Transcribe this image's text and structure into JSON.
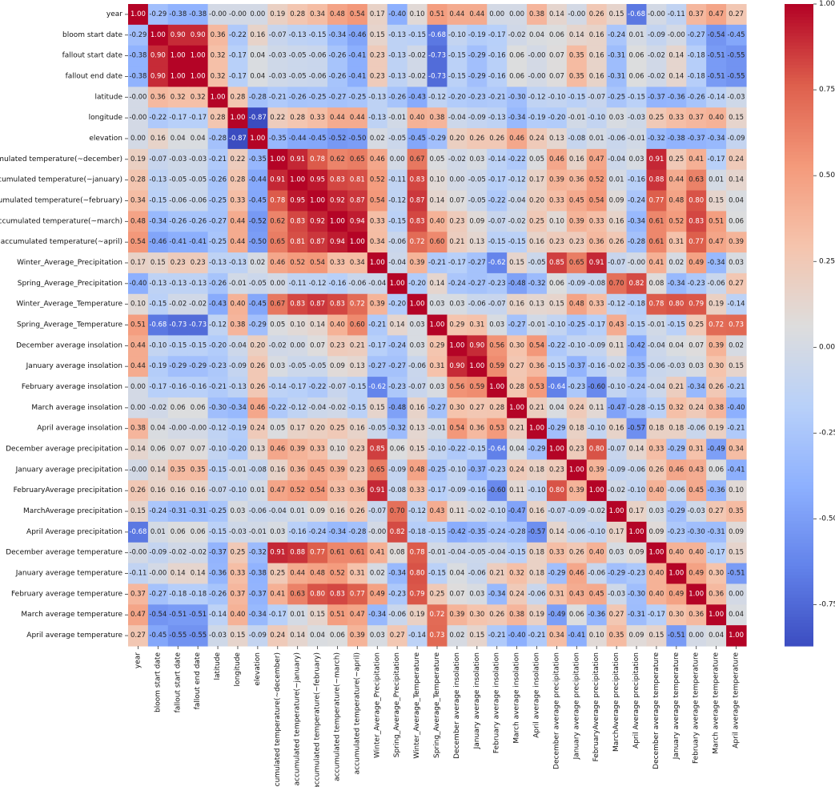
{
  "chart_data": {
    "type": "heatmap",
    "title": "",
    "colormap": "coolwarm",
    "vmin": -0.87,
    "vmax": 1.0,
    "colorbar_ticks": [
      "-0.75",
      "-0.50",
      "-0.25",
      "0.00",
      "0.25",
      "0.50",
      "0.75",
      "1.00"
    ],
    "labels": [
      "year",
      "bloom start date",
      "fallout start date",
      "fallout end date",
      "latitude",
      "longitude",
      "elevation",
      "accumulated temperature(~december)",
      "accumulated temperature(~january)",
      "accumulated temperature(~february)",
      "accumulated temperature(~march)",
      "accumulated temperature(~april)",
      "Winter_Average_Precipitation",
      "Spring_Average_Precipitation",
      "Winter_Average_Temperature",
      "Spring_Average_Temperature",
      "December average insolation",
      "January average insolation",
      "February average insolation",
      "March average insolation",
      "April average insolation",
      "December average precipitation",
      "January average precipitation",
      "FebruaryAverage precipitation",
      "MarchAverage precipitation",
      "April Average precipitation",
      "December average temperature",
      "January average temperature",
      "February average temperature",
      "March average temperature",
      "April average temperature"
    ],
    "matrix": [
      [
        "1.00",
        "-0.29",
        "-0.38",
        "-0.38",
        "-0.00",
        "-0.00",
        "0.00",
        "0.19",
        "0.28",
        "0.34",
        "0.48",
        "0.54",
        "0.17",
        "-0.40",
        "0.10",
        "0.51",
        "0.44",
        "0.44",
        "0.00",
        "0.00",
        "0.38",
        "0.14",
        "-0.00",
        "0.26",
        "0.15",
        "-0.68",
        "-0.00",
        "-0.11",
        "0.37",
        "0.47",
        "0.27"
      ],
      [
        "-0.29",
        "1.00",
        "0.90",
        "0.90",
        "0.36",
        "-0.22",
        "0.16",
        "-0.07",
        "-0.13",
        "-0.15",
        "-0.34",
        "-0.46",
        "0.15",
        "-0.13",
        "-0.15",
        "-0.68",
        "-0.10",
        "-0.19",
        "-0.17",
        "-0.02",
        "0.04",
        "0.06",
        "0.14",
        "0.16",
        "-0.24",
        "0.01",
        "-0.09",
        "-0.00",
        "-0.27",
        "-0.54",
        "-0.45"
      ],
      [
        "-0.38",
        "0.90",
        "1.00",
        "1.00",
        "0.32",
        "-0.17",
        "0.04",
        "-0.03",
        "-0.05",
        "-0.06",
        "-0.26",
        "-0.41",
        "0.23",
        "-0.13",
        "-0.02",
        "-0.73",
        "-0.15",
        "-0.29",
        "-0.16",
        "0.06",
        "-0.00",
        "0.07",
        "0.35",
        "0.16",
        "-0.31",
        "0.06",
        "-0.02",
        "0.14",
        "-0.18",
        "-0.51",
        "-0.55"
      ],
      [
        "-0.38",
        "0.90",
        "1.00",
        "1.00",
        "0.32",
        "-0.17",
        "0.04",
        "-0.03",
        "-0.05",
        "-0.06",
        "-0.26",
        "-0.41",
        "0.23",
        "-0.13",
        "-0.02",
        "-0.73",
        "-0.15",
        "-0.29",
        "-0.16",
        "0.06",
        "-0.00",
        "0.07",
        "0.35",
        "0.16",
        "-0.31",
        "0.06",
        "-0.02",
        "0.14",
        "-0.18",
        "-0.51",
        "-0.55"
      ],
      [
        "-0.00",
        "0.36",
        "0.32",
        "0.32",
        "1.00",
        "0.28",
        "-0.28",
        "-0.21",
        "-0.26",
        "-0.25",
        "-0.27",
        "-0.25",
        "-0.13",
        "-0.26",
        "-0.43",
        "-0.12",
        "-0.20",
        "-0.23",
        "-0.21",
        "-0.30",
        "-0.12",
        "-0.10",
        "-0.15",
        "-0.07",
        "-0.25",
        "-0.15",
        "-0.37",
        "-0.36",
        "-0.26",
        "-0.14",
        "-0.03"
      ],
      [
        "-0.00",
        "-0.22",
        "-0.17",
        "-0.17",
        "0.28",
        "1.00",
        "-0.87",
        "0.22",
        "0.28",
        "0.33",
        "0.44",
        "0.44",
        "-0.13",
        "-0.01",
        "0.40",
        "0.38",
        "-0.04",
        "-0.09",
        "-0.13",
        "-0.34",
        "-0.19",
        "-0.20",
        "-0.01",
        "-0.10",
        "0.03",
        "-0.03",
        "0.25",
        "0.33",
        "0.37",
        "0.40",
        "0.15"
      ],
      [
        "0.00",
        "0.16",
        "0.04",
        "0.04",
        "-0.28",
        "-0.87",
        "1.00",
        "-0.35",
        "-0.44",
        "-0.45",
        "-0.52",
        "-0.50",
        "0.02",
        "-0.05",
        "-0.45",
        "-0.29",
        "0.20",
        "0.26",
        "0.26",
        "0.46",
        "0.24",
        "0.13",
        "-0.08",
        "0.01",
        "-0.06",
        "-0.01",
        "-0.32",
        "-0.38",
        "-0.37",
        "-0.34",
        "-0.09"
      ],
      [
        "0.19",
        "-0.07",
        "-0.03",
        "-0.03",
        "-0.21",
        "0.22",
        "-0.35",
        "1.00",
        "0.91",
        "0.78",
        "0.62",
        "0.65",
        "0.46",
        "0.00",
        "0.67",
        "0.05",
        "-0.02",
        "0.03",
        "-0.14",
        "-0.22",
        "0.05",
        "0.46",
        "0.16",
        "0.47",
        "-0.04",
        "0.03",
        "0.91",
        "0.25",
        "0.41",
        "-0.17",
        "0.24"
      ],
      [
        "0.28",
        "-0.13",
        "-0.05",
        "-0.05",
        "-0.26",
        "0.28",
        "-0.44",
        "0.91",
        "1.00",
        "0.95",
        "0.83",
        "0.81",
        "0.52",
        "-0.11",
        "0.83",
        "0.10",
        "0.00",
        "-0.05",
        "-0.17",
        "-0.12",
        "0.17",
        "0.39",
        "0.36",
        "0.52",
        "0.01",
        "-0.16",
        "0.88",
        "0.44",
        "0.63",
        "0.01",
        "0.14"
      ],
      [
        "0.34",
        "-0.15",
        "-0.06",
        "-0.06",
        "-0.25",
        "0.33",
        "-0.45",
        "0.78",
        "0.95",
        "1.00",
        "0.92",
        "0.87",
        "0.54",
        "-0.12",
        "0.87",
        "0.14",
        "0.07",
        "-0.05",
        "-0.22",
        "-0.04",
        "0.20",
        "0.33",
        "0.45",
        "0.54",
        "0.09",
        "-0.24",
        "0.77",
        "0.48",
        "0.80",
        "0.15",
        "0.04"
      ],
      [
        "0.48",
        "-0.34",
        "-0.26",
        "-0.26",
        "-0.27",
        "0.44",
        "-0.52",
        "0.62",
        "0.83",
        "0.92",
        "1.00",
        "0.94",
        "0.33",
        "-0.15",
        "0.83",
        "0.40",
        "0.23",
        "0.09",
        "-0.07",
        "-0.02",
        "0.25",
        "0.10",
        "0.39",
        "0.33",
        "0.16",
        "-0.34",
        "0.61",
        "0.52",
        "0.83",
        "0.51",
        "0.06"
      ],
      [
        "0.54",
        "-0.46",
        "-0.41",
        "-0.41",
        "-0.25",
        "0.44",
        "-0.50",
        "0.65",
        "0.81",
        "0.87",
        "0.94",
        "1.00",
        "0.34",
        "-0.06",
        "0.72",
        "0.60",
        "0.21",
        "0.13",
        "-0.15",
        "-0.15",
        "0.16",
        "0.23",
        "0.23",
        "0.36",
        "0.26",
        "-0.28",
        "0.61",
        "0.31",
        "0.77",
        "0.47",
        "0.39"
      ],
      [
        "0.17",
        "0.15",
        "0.23",
        "0.23",
        "-0.13",
        "-0.13",
        "0.02",
        "0.46",
        "0.52",
        "0.54",
        "0.33",
        "0.34",
        "1.00",
        "-0.04",
        "0.39",
        "-0.21",
        "-0.17",
        "-0.27",
        "-0.62",
        "0.15",
        "-0.05",
        "0.85",
        "0.65",
        "0.91",
        "-0.07",
        "-0.00",
        "0.41",
        "0.02",
        "0.49",
        "-0.34",
        "0.03"
      ],
      [
        "-0.40",
        "-0.13",
        "-0.13",
        "-0.13",
        "-0.26",
        "-0.01",
        "-0.05",
        "0.00",
        "-0.11",
        "-0.12",
        "-0.16",
        "-0.06",
        "-0.04",
        "1.00",
        "-0.20",
        "0.14",
        "-0.24",
        "-0.27",
        "-0.23",
        "-0.48",
        "-0.32",
        "0.06",
        "-0.09",
        "-0.08",
        "0.70",
        "0.82",
        "0.08",
        "-0.34",
        "-0.23",
        "-0.06",
        "0.27"
      ],
      [
        "0.10",
        "-0.15",
        "-0.02",
        "-0.02",
        "-0.43",
        "0.40",
        "-0.45",
        "0.67",
        "0.83",
        "0.87",
        "0.83",
        "0.72",
        "0.39",
        "-0.20",
        "1.00",
        "0.03",
        "0.03",
        "-0.06",
        "-0.07",
        "0.16",
        "0.13",
        "0.15",
        "0.48",
        "0.33",
        "-0.12",
        "-0.18",
        "0.78",
        "0.80",
        "0.79",
        "0.19",
        "-0.14"
      ],
      [
        "0.51",
        "-0.68",
        "-0.73",
        "-0.73",
        "-0.12",
        "0.38",
        "-0.29",
        "0.05",
        "0.10",
        "0.14",
        "0.40",
        "0.60",
        "-0.21",
        "0.14",
        "0.03",
        "1.00",
        "0.29",
        "0.31",
        "0.03",
        "-0.27",
        "-0.01",
        "-0.10",
        "-0.25",
        "-0.17",
        "0.43",
        "-0.15",
        "-0.01",
        "-0.15",
        "0.25",
        "0.72",
        "0.73"
      ],
      [
        "0.44",
        "-0.10",
        "-0.15",
        "-0.15",
        "-0.20",
        "-0.04",
        "0.20",
        "-0.02",
        "0.00",
        "0.07",
        "0.23",
        "0.21",
        "-0.17",
        "-0.24",
        "0.03",
        "0.29",
        "1.00",
        "0.90",
        "0.56",
        "0.30",
        "0.54",
        "-0.22",
        "-0.10",
        "-0.09",
        "0.11",
        "-0.42",
        "-0.04",
        "0.04",
        "0.07",
        "0.39",
        "0.02"
      ],
      [
        "0.44",
        "-0.19",
        "-0.29",
        "-0.29",
        "-0.23",
        "-0.09",
        "0.26",
        "0.03",
        "-0.05",
        "-0.05",
        "0.09",
        "0.13",
        "-0.27",
        "-0.27",
        "-0.06",
        "0.31",
        "0.90",
        "1.00",
        "0.59",
        "0.27",
        "0.36",
        "-0.15",
        "-0.37",
        "-0.16",
        "-0.02",
        "-0.35",
        "-0.06",
        "-0.03",
        "0.03",
        "0.30",
        "0.15"
      ],
      [
        "0.00",
        "-0.17",
        "-0.16",
        "-0.16",
        "-0.21",
        "-0.13",
        "0.26",
        "-0.14",
        "-0.17",
        "-0.22",
        "-0.07",
        "-0.15",
        "-0.62",
        "-0.23",
        "-0.07",
        "0.03",
        "0.56",
        "0.59",
        "1.00",
        "0.28",
        "0.53",
        "-0.64",
        "-0.23",
        "-0.60",
        "-0.10",
        "-0.24",
        "-0.04",
        "0.21",
        "-0.34",
        "0.26",
        "-0.21"
      ],
      [
        "0.00",
        "-0.02",
        "0.06",
        "0.06",
        "-0.30",
        "-0.34",
        "0.46",
        "-0.22",
        "-0.12",
        "-0.04",
        "-0.02",
        "-0.15",
        "0.15",
        "-0.48",
        "0.16",
        "-0.27",
        "0.30",
        "0.27",
        "0.28",
        "1.00",
        "0.21",
        "0.04",
        "0.24",
        "0.11",
        "-0.47",
        "-0.28",
        "-0.15",
        "0.32",
        "0.24",
        "0.38",
        "-0.40"
      ],
      [
        "0.38",
        "0.04",
        "-0.00",
        "-0.00",
        "-0.12",
        "-0.19",
        "0.24",
        "0.05",
        "0.17",
        "0.20",
        "0.25",
        "0.16",
        "-0.05",
        "-0.32",
        "0.13",
        "-0.01",
        "0.54",
        "0.36",
        "0.53",
        "0.21",
        "1.00",
        "-0.29",
        "0.18",
        "-0.10",
        "0.16",
        "-0.57",
        "0.18",
        "0.18",
        "-0.06",
        "0.19",
        "-0.21"
      ],
      [
        "0.14",
        "0.06",
        "0.07",
        "0.07",
        "-0.10",
        "-0.20",
        "0.13",
        "0.46",
        "0.39",
        "0.33",
        "0.10",
        "0.23",
        "0.85",
        "0.06",
        "0.15",
        "-0.10",
        "-0.22",
        "-0.15",
        "-0.64",
        "0.04",
        "-0.29",
        "1.00",
        "0.23",
        "0.80",
        "-0.07",
        "0.14",
        "0.33",
        "-0.29",
        "0.31",
        "-0.49",
        "0.34"
      ],
      [
        "-0.00",
        "0.14",
        "0.35",
        "0.35",
        "-0.15",
        "-0.01",
        "-0.08",
        "0.16",
        "0.36",
        "0.45",
        "0.39",
        "0.23",
        "0.65",
        "-0.09",
        "0.48",
        "-0.25",
        "-0.10",
        "-0.37",
        "-0.23",
        "0.24",
        "0.18",
        "0.23",
        "1.00",
        "0.39",
        "-0.09",
        "-0.06",
        "0.26",
        "0.46",
        "0.43",
        "0.06",
        "-0.41"
      ],
      [
        "0.26",
        "0.16",
        "0.16",
        "0.16",
        "-0.07",
        "-0.10",
        "0.01",
        "0.47",
        "0.52",
        "0.54",
        "0.33",
        "0.36",
        "0.91",
        "-0.08",
        "0.33",
        "-0.17",
        "-0.09",
        "-0.16",
        "-0.60",
        "0.11",
        "-0.10",
        "0.80",
        "0.39",
        "1.00",
        "-0.02",
        "-0.10",
        "0.40",
        "-0.06",
        "0.45",
        "-0.36",
        "0.10"
      ],
      [
        "0.15",
        "-0.24",
        "-0.31",
        "-0.31",
        "-0.25",
        "0.03",
        "-0.06",
        "-0.04",
        "0.01",
        "0.09",
        "0.16",
        "0.26",
        "-0.07",
        "0.70",
        "-0.12",
        "0.43",
        "0.11",
        "-0.02",
        "-0.10",
        "-0.47",
        "0.16",
        "-0.07",
        "-0.09",
        "-0.02",
        "1.00",
        "0.17",
        "0.03",
        "-0.29",
        "-0.03",
        "0.27",
        "0.35"
      ],
      [
        "-0.68",
        "0.01",
        "0.06",
        "0.06",
        "-0.15",
        "-0.03",
        "-0.01",
        "0.03",
        "-0.16",
        "-0.24",
        "-0.34",
        "-0.28",
        "-0.00",
        "0.82",
        "-0.18",
        "-0.15",
        "-0.42",
        "-0.35",
        "-0.24",
        "-0.28",
        "-0.57",
        "0.14",
        "-0.06",
        "-0.10",
        "0.17",
        "1.00",
        "0.09",
        "-0.23",
        "-0.30",
        "-0.31",
        "0.09"
      ],
      [
        "-0.00",
        "-0.09",
        "-0.02",
        "-0.02",
        "-0.37",
        "0.25",
        "-0.32",
        "0.91",
        "0.88",
        "0.77",
        "0.61",
        "0.61",
        "0.41",
        "0.08",
        "0.78",
        "-0.01",
        "-0.04",
        "-0.05",
        "-0.04",
        "-0.15",
        "0.18",
        "0.33",
        "0.26",
        "0.40",
        "0.03",
        "0.09",
        "1.00",
        "0.40",
        "0.40",
        "-0.17",
        "0.15"
      ],
      [
        "-0.11",
        "-0.00",
        "0.14",
        "0.14",
        "-0.36",
        "0.33",
        "-0.38",
        "0.25",
        "0.44",
        "0.48",
        "0.52",
        "0.31",
        "0.02",
        "-0.34",
        "0.80",
        "-0.15",
        "0.04",
        "-0.06",
        "0.21",
        "0.32",
        "0.18",
        "-0.29",
        "0.46",
        "-0.06",
        "-0.29",
        "-0.23",
        "0.40",
        "1.00",
        "0.49",
        "0.30",
        "-0.51"
      ],
      [
        "0.37",
        "-0.27",
        "-0.18",
        "-0.18",
        "-0.26",
        "0.37",
        "-0.37",
        "0.41",
        "0.63",
        "0.80",
        "0.83",
        "0.77",
        "0.49",
        "-0.23",
        "0.79",
        "0.25",
        "0.07",
        "0.03",
        "-0.34",
        "0.24",
        "-0.06",
        "0.31",
        "0.43",
        "0.45",
        "-0.03",
        "-0.30",
        "0.40",
        "0.49",
        "1.00",
        "0.36",
        "0.00"
      ],
      [
        "0.47",
        "-0.54",
        "-0.51",
        "-0.51",
        "-0.14",
        "0.40",
        "-0.34",
        "-0.17",
        "0.01",
        "0.15",
        "0.51",
        "0.47",
        "-0.34",
        "-0.06",
        "0.19",
        "0.72",
        "0.39",
        "0.30",
        "0.26",
        "0.38",
        "0.19",
        "-0.49",
        "0.06",
        "-0.36",
        "0.27",
        "-0.31",
        "-0.17",
        "0.30",
        "0.36",
        "1.00",
        "0.04"
      ],
      [
        "0.27",
        "-0.45",
        "-0.55",
        "-0.55",
        "-0.03",
        "0.15",
        "-0.09",
        "0.24",
        "0.14",
        "0.04",
        "0.06",
        "0.39",
        "0.03",
        "0.27",
        "-0.14",
        "0.73",
        "0.02",
        "0.15",
        "-0.21",
        "-0.40",
        "-0.21",
        "0.34",
        "-0.41",
        "0.10",
        "0.35",
        "0.09",
        "0.15",
        "-0.51",
        "0.00",
        "0.04",
        "1.00"
      ]
    ]
  }
}
